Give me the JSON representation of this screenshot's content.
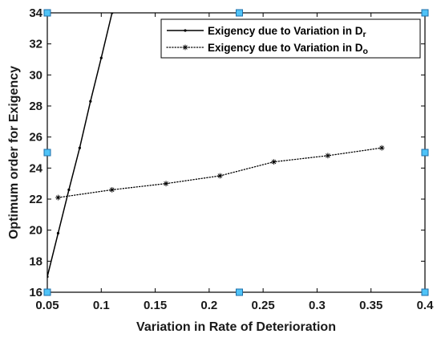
{
  "chart_data": {
    "type": "line",
    "xlabel": "Variation in Rate of Deterioration",
    "ylabel": "Optimum order for Exigency",
    "xlim": [
      0.05,
      0.4
    ],
    "ylim": [
      16,
      34
    ],
    "xticks": [
      "0.05",
      "0.1",
      "0.15",
      "0.2",
      "0.25",
      "0.3",
      "0.35",
      "0.4"
    ],
    "yticks": [
      "16",
      "18",
      "20",
      "22",
      "24",
      "26",
      "28",
      "30",
      "32",
      "34"
    ],
    "grid": false,
    "legend_position": "top-right",
    "series": [
      {
        "name": "Exigency due to Variation in D",
        "name_subscript": "r",
        "style": "solid",
        "marker": "dot",
        "x": [
          0.05,
          0.06,
          0.07,
          0.08,
          0.09,
          0.1,
          0.11
        ],
        "y": [
          17.0,
          19.8,
          22.6,
          25.3,
          28.3,
          31.1,
          34.0
        ]
      },
      {
        "name": "Exigency due to Variation in D",
        "name_subscript": "o",
        "style": "dotted",
        "marker": "asterisk",
        "x": [
          0.06,
          0.11,
          0.16,
          0.21,
          0.26,
          0.31,
          0.36
        ],
        "y": [
          22.1,
          22.6,
          23.0,
          23.5,
          24.4,
          24.8,
          25.3
        ]
      }
    ],
    "colors": {
      "series": "#000000",
      "handles": "#4fc3f7"
    }
  }
}
